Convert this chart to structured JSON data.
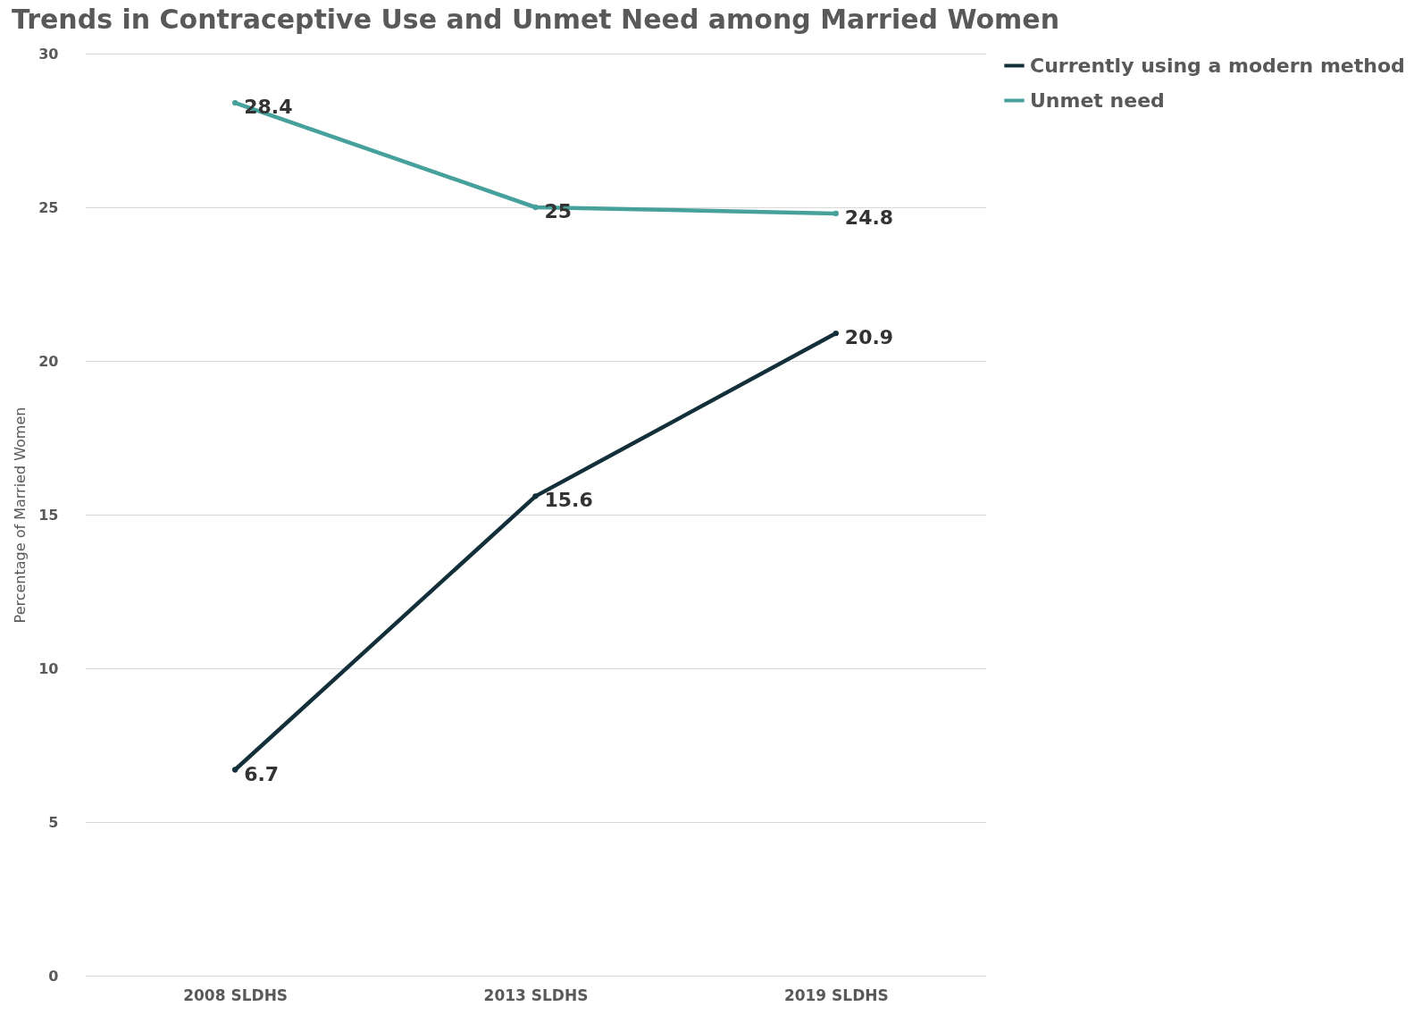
{
  "chart_data": {
    "type": "line",
    "title": "Trends in Contraceptive Use and Unmet Need among Married Women",
    "ylabel": "Percentage of Married Women",
    "categories": [
      "2008 SLDHS",
      "2013 SLDHS",
      "2019 SLDHS"
    ],
    "series": [
      {
        "name": "Currently using a modern method",
        "color": "#13303a",
        "values": [
          6.7,
          15.6,
          20.9
        ]
      },
      {
        "name": "Unmet need",
        "color": "#46a09c",
        "values": [
          28.4,
          25,
          24.8
        ]
      }
    ],
    "ylim": [
      0,
      30
    ],
    "yticks": [
      0,
      5,
      10,
      15,
      20,
      25,
      30
    ],
    "grid": "y",
    "legend": "right",
    "marker": "circle",
    "data_labels": true
  }
}
